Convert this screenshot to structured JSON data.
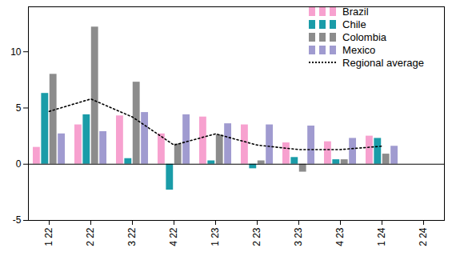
{
  "chart_data": {
    "type": "bar",
    "categories": [
      "1 22",
      "2 22",
      "3 22",
      "4 22",
      "1 23",
      "2 23",
      "3 23",
      "4 23",
      "1 24",
      "2 24"
    ],
    "series": [
      {
        "name": "Brazil",
        "color": "#f7a1cf",
        "values": [
          1.5,
          3.5,
          4.3,
          2.7,
          4.2,
          3.5,
          1.9,
          2.0,
          2.5,
          null
        ]
      },
      {
        "name": "Chile",
        "color": "#1a9ca8",
        "values": [
          6.3,
          4.4,
          0.5,
          -2.3,
          0.3,
          -0.4,
          0.6,
          0.4,
          2.3,
          null
        ]
      },
      {
        "name": "Colombia",
        "color": "#8c8c8c",
        "values": [
          8.0,
          12.2,
          7.3,
          1.8,
          2.6,
          0.3,
          -0.7,
          0.4,
          0.9,
          null
        ]
      },
      {
        "name": "Mexico",
        "color": "#a09bd0",
        "values": [
          2.7,
          2.9,
          4.6,
          4.4,
          3.6,
          3.5,
          3.4,
          2.3,
          1.6,
          null
        ]
      },
      {
        "name": "Regional average",
        "type": "line",
        "color": "#000000",
        "line_style": "dotted",
        "values": [
          4.7,
          5.8,
          4.2,
          1.7,
          2.7,
          1.7,
          1.3,
          1.3,
          1.6,
          null
        ]
      }
    ],
    "ylim": [
      -5,
      14
    ],
    "yticks": [
      -5,
      0,
      5,
      10
    ],
    "legend": "top-right",
    "grid": false
  }
}
